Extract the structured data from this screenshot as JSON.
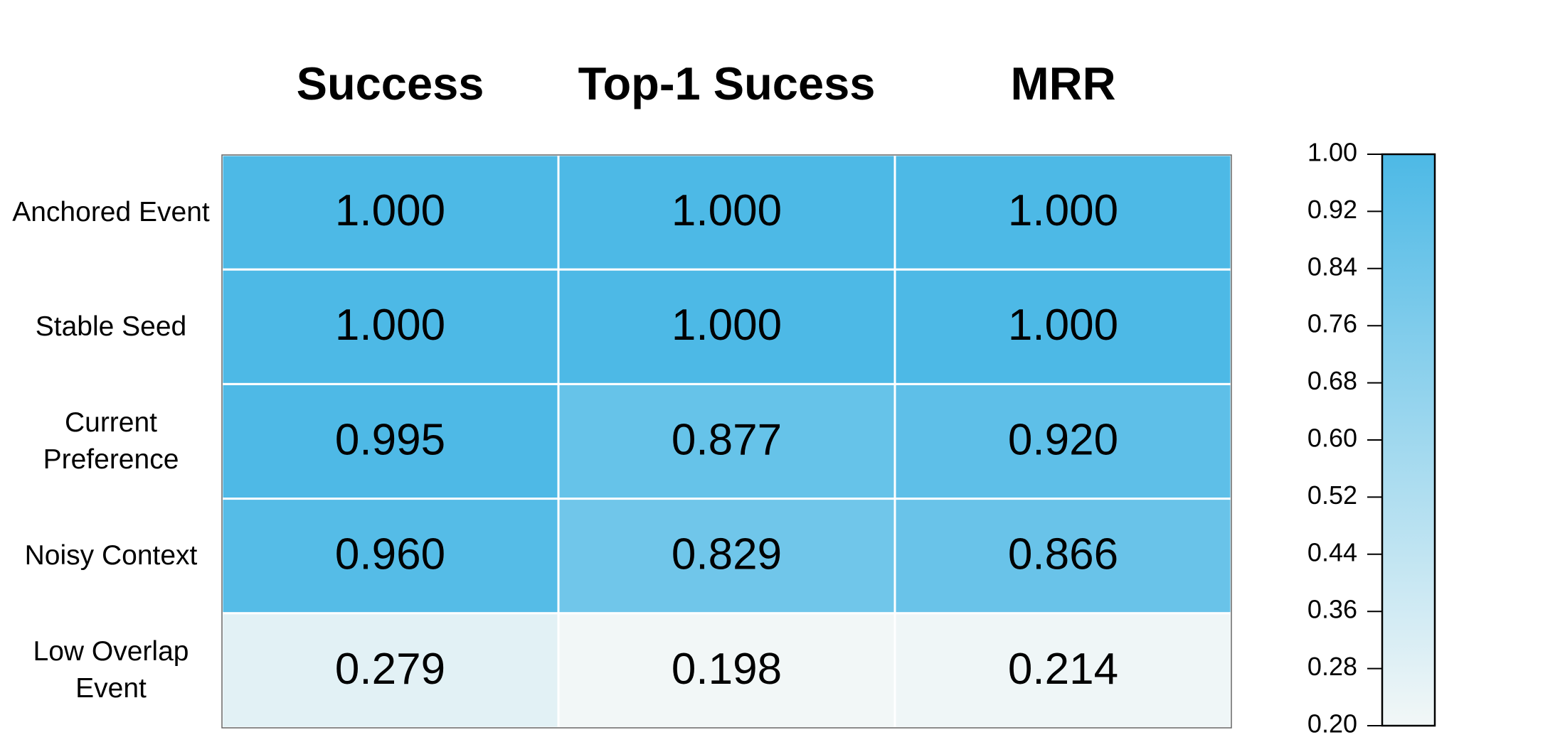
{
  "chart_data": {
    "type": "heatmap",
    "x_categories": [
      "Success",
      "Top-1 Sucess",
      "MRR"
    ],
    "y_categories": [
      "Anchored Event",
      "Stable Seed",
      "Current Preference",
      "Noisy Context",
      "Low Overlap Event"
    ],
    "values": [
      [
        1.0,
        1.0,
        1.0
      ],
      [
        1.0,
        1.0,
        1.0
      ],
      [
        0.995,
        0.877,
        0.92
      ],
      [
        0.96,
        0.829,
        0.866
      ],
      [
        0.279,
        0.198,
        0.214
      ]
    ],
    "value_labels": [
      [
        "1.000",
        "1.000",
        "1.000"
      ],
      [
        "1.000",
        "1.000",
        "1.000"
      ],
      [
        "0.995",
        "0.877",
        "0.920"
      ],
      [
        "0.960",
        "0.829",
        "0.866"
      ],
      [
        "0.279",
        "0.198",
        "0.214"
      ]
    ],
    "colormap": [
      "#f2f7f7",
      "#4db9e6"
    ],
    "clim": [
      0.2,
      1.0
    ],
    "cticks": [
      {
        "value": 1.0,
        "label": "1.00"
      },
      0.92,
      0.84,
      0.76,
      0.68,
      {
        "value": 0.6,
        "label": "0.60"
      },
      0.52,
      0.44,
      0.36,
      0.28,
      {
        "value": 0.2,
        "label": "0.20"
      }
    ]
  }
}
